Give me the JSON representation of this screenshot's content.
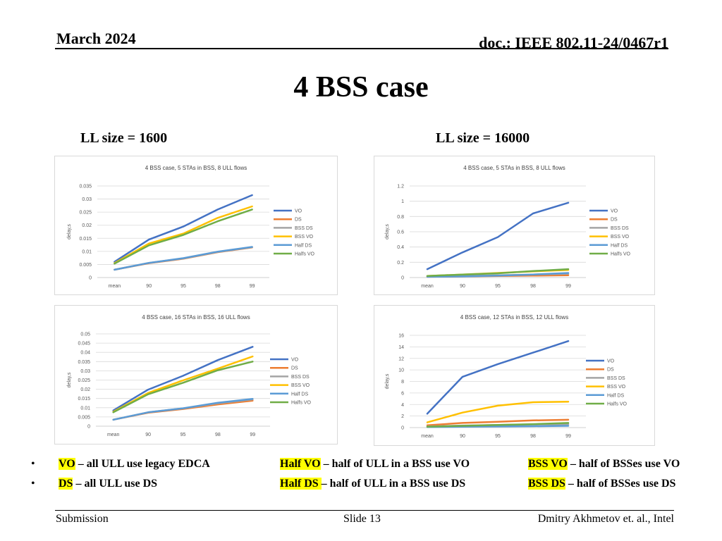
{
  "header": {
    "date": "March 2024",
    "doc": "doc.: IEEE 802.11-24/0467r1"
  },
  "slide_title": "4 BSS case",
  "subtitles": {
    "left": "LL size = 1600",
    "right": "LL size = 16000"
  },
  "series_colors": {
    "VO": "#4472c4",
    "DS": "#ed7d31",
    "BSS DS": "#a5a5a5",
    "BSS VO": "#ffc000",
    "Half DS": "#5b9bd5",
    "Halfs VO": "#70ad47"
  },
  "chart_data": [
    {
      "type": "line",
      "title": "4 BSS case, 5 STAs in BSS, 8 ULL flows",
      "ylabel": "delay,s",
      "categories": [
        "mean",
        "90",
        "95",
        "98",
        "99"
      ],
      "ylim": [
        0,
        0.035
      ],
      "yticks": [
        "0",
        "0.005",
        "0.01",
        "0.015",
        "0.02",
        "0.025",
        "0.03",
        "0.035"
      ],
      "series": [
        {
          "name": "VO",
          "values": [
            0.006,
            0.0145,
            0.0195,
            0.026,
            0.0315
          ]
        },
        {
          "name": "DS",
          "values": [
            0.003,
            0.0055,
            0.0072,
            0.0097,
            0.0115
          ]
        },
        {
          "name": "BSS DS",
          "values": [
            0.003,
            0.0056,
            0.0073,
            0.0098,
            0.0116
          ]
        },
        {
          "name": "BSS VO",
          "values": [
            0.0055,
            0.013,
            0.0168,
            0.0228,
            0.0272
          ]
        },
        {
          "name": "Half DS",
          "values": [
            0.003,
            0.0056,
            0.0074,
            0.0099,
            0.0117
          ]
        },
        {
          "name": "Halfs VO",
          "values": [
            0.0053,
            0.0123,
            0.0163,
            0.0215,
            0.026
          ]
        }
      ]
    },
    {
      "type": "line",
      "title": "4 BSS case, 5 STAs in BSS, 8 ULL flows",
      "ylabel": "delay,s",
      "categories": [
        "mean",
        "90",
        "95",
        "98",
        "99"
      ],
      "ylim": [
        0,
        1.2
      ],
      "yticks": [
        "0",
        "0.2",
        "0.4",
        "0.6",
        "0.8",
        "1",
        "1.2"
      ],
      "series": [
        {
          "name": "VO",
          "values": [
            0.11,
            0.33,
            0.53,
            0.84,
            0.98
          ]
        },
        {
          "name": "DS",
          "values": [
            0.01,
            0.015,
            0.02,
            0.025,
            0.03
          ]
        },
        {
          "name": "BSS DS",
          "values": [
            0.01,
            0.02,
            0.03,
            0.04,
            0.05
          ]
        },
        {
          "name": "BSS VO",
          "values": [
            0.02,
            0.04,
            0.06,
            0.08,
            0.1
          ]
        },
        {
          "name": "Half DS",
          "values": [
            0.01,
            0.015,
            0.025,
            0.04,
            0.06
          ]
        },
        {
          "name": "Halfs VO",
          "values": [
            0.02,
            0.04,
            0.055,
            0.085,
            0.11
          ]
        }
      ]
    },
    {
      "type": "line",
      "title": "4 BSS case, 16 STAs in BSS, 16 ULL flows",
      "ylabel": "delay,s",
      "categories": [
        "mean",
        "90",
        "95",
        "98",
        "99"
      ],
      "ylim": [
        0,
        0.05
      ],
      "yticks": [
        "0",
        "0.005",
        "0.01",
        "0.015",
        "0.02",
        "0.025",
        "0.03",
        "0.035",
        "0.04",
        "0.045",
        "0.05"
      ],
      "series": [
        {
          "name": "VO",
          "values": [
            0.0085,
            0.0198,
            0.0273,
            0.0358,
            0.043
          ]
        },
        {
          "name": "DS",
          "values": [
            0.0035,
            0.0073,
            0.0093,
            0.0118,
            0.0138
          ]
        },
        {
          "name": "BSS DS",
          "values": [
            0.0035,
            0.0075,
            0.0096,
            0.0124,
            0.0145
          ]
        },
        {
          "name": "BSS VO",
          "values": [
            0.0078,
            0.018,
            0.0248,
            0.0312,
            0.0378
          ]
        },
        {
          "name": "Half DS",
          "values": [
            0.0035,
            0.0075,
            0.0097,
            0.0127,
            0.0148
          ]
        },
        {
          "name": "Halfs VO",
          "values": [
            0.0075,
            0.0173,
            0.0235,
            0.0303,
            0.035
          ]
        }
      ]
    },
    {
      "type": "line",
      "title": "4 BSS case, 12 STAs in BSS, 12 ULL flows",
      "ylabel": "delay,s",
      "categories": [
        "mean",
        "90",
        "95",
        "98",
        "99"
      ],
      "ylim": [
        0,
        16
      ],
      "yticks": [
        "0",
        "2",
        "4",
        "6",
        "8",
        "10",
        "12",
        "14",
        "16"
      ],
      "series": [
        {
          "name": "VO",
          "values": [
            2.4,
            8.8,
            11.0,
            13.0,
            15.0
          ]
        },
        {
          "name": "DS",
          "values": [
            0.4,
            0.8,
            1.0,
            1.25,
            1.35
          ]
        },
        {
          "name": "BSS DS",
          "values": [
            0.2,
            0.35,
            0.45,
            0.55,
            0.6
          ]
        },
        {
          "name": "BSS VO",
          "values": [
            0.9,
            2.6,
            3.8,
            4.4,
            4.5
          ]
        },
        {
          "name": "Half DS",
          "values": [
            0.1,
            0.15,
            0.2,
            0.25,
            0.3
          ]
        },
        {
          "name": "Halfs VO",
          "values": [
            0.15,
            0.3,
            0.45,
            0.6,
            0.8
          ]
        }
      ]
    }
  ],
  "legend_notes": {
    "row1": [
      {
        "key": "VO",
        "text": " – all ULL use legacy EDCA"
      },
      {
        "key": "Half VO",
        "text": " – half of ULL in a BSS use VO"
      },
      {
        "key": "BSS VO",
        "text": " – half of BSSes use VO"
      }
    ],
    "row2": [
      {
        "key": "DS",
        "text": " – all ULL use DS"
      },
      {
        "key": "Half DS ",
        "text": "– half of ULL in a BSS use DS"
      },
      {
        "key": "BSS DS",
        "text": " – half of BSSes use DS"
      }
    ],
    "bullet": "•"
  },
  "footer": {
    "left": "Submission",
    "center": "Slide 13",
    "right": "Dmitry Akhmetov et. al., Intel"
  }
}
